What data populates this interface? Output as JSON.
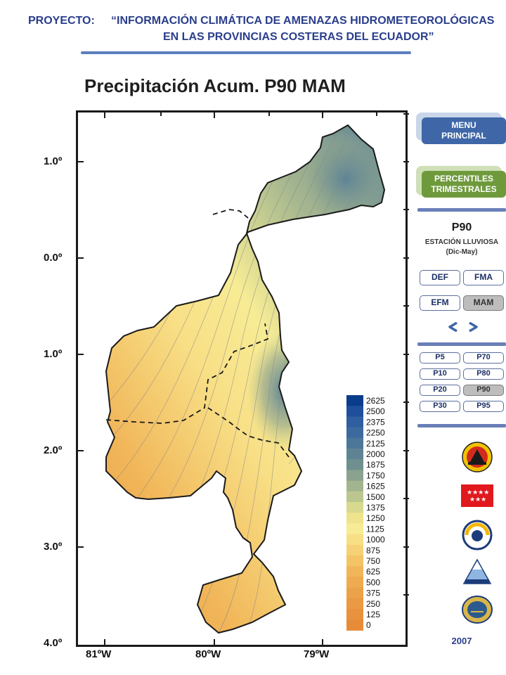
{
  "header": {
    "label": "PROYECTO:",
    "title_line1": "“INFORMACIÓN CLIMÁTICA DE AMENAZAS HIDROMETEOROLÓGICAS",
    "title_line2": "EN LAS PROVINCIAS COSTERAS DEL ECUADOR”"
  },
  "map": {
    "title": "Precipitación Acum. P90 MAM",
    "lat_labels": [
      "1.0º",
      "0.0º",
      "1.0º",
      "2.0º",
      "3.0º",
      "4.0º"
    ],
    "lon_labels": [
      "81ºW",
      "80ºW",
      "79ºW"
    ]
  },
  "chart_data": {
    "type": "heatmap",
    "title": "Precipitación Acum. P90 MAM",
    "legend_values": [
      2625,
      2500,
      2375,
      2250,
      2125,
      2000,
      1875,
      1750,
      1625,
      1500,
      1375,
      1250,
      1125,
      1000,
      875,
      750,
      625,
      500,
      375,
      250,
      125,
      0
    ],
    "legend_colors": [
      "#0a3c8c",
      "#1f4f9a",
      "#2f5f9f",
      "#3d6a9e",
      "#4c7799",
      "#5e8493",
      "#6f908f",
      "#8aa28f",
      "#a3b58f",
      "#bcc790",
      "#d7d98e",
      "#eee48b",
      "#f7ec95",
      "#f8df86",
      "#f6d175",
      "#f3c465",
      "#f1b659",
      "#eeab4f",
      "#eca248",
      "#ea9a42",
      "#e8923d",
      "#e88b39"
    ],
    "lat_labels": [
      "1.0º",
      "0.0º",
      "1.0º",
      "2.0º",
      "3.0º",
      "4.0º"
    ],
    "lon_labels": [
      "81ºW",
      "80ºW",
      "79ºW"
    ]
  },
  "sidebar": {
    "menu_label": "MENU PRINCIPAL",
    "percentiles_label": "PERCENTILES TRIMESTRALES",
    "current_percentile": "P90",
    "season_label": "ESTACIÓN LLUVIOSA",
    "season_range": "(Dic-May)",
    "season_buttons": [
      {
        "label": "DEF",
        "selected": false
      },
      {
        "label": "FMA",
        "selected": false
      },
      {
        "label": "EFM",
        "selected": false
      },
      {
        "label": "MAM",
        "selected": true
      }
    ],
    "percentile_buttons": [
      {
        "label": "P5",
        "selected": false
      },
      {
        "label": "P70",
        "selected": false
      },
      {
        "label": "P10",
        "selected": false
      },
      {
        "label": "P80",
        "selected": false
      },
      {
        "label": "P20",
        "selected": false
      },
      {
        "label": "P90",
        "selected": true
      },
      {
        "label": "P30",
        "selected": false
      },
      {
        "label": "P95",
        "selected": false
      }
    ],
    "year": "2007"
  },
  "colors": {
    "menu_button": "#3f67a8",
    "percentiles_button": "#6f9a3c",
    "header_text": "#2a3e8c",
    "selected_pill": "#bdbdbd"
  }
}
